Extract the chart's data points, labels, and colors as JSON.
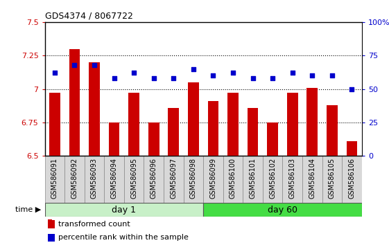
{
  "title": "GDS4374 / 8067722",
  "categories": [
    "GSM586091",
    "GSM586092",
    "GSM586093",
    "GSM586094",
    "GSM586095",
    "GSM586096",
    "GSM586097",
    "GSM586098",
    "GSM586099",
    "GSM586100",
    "GSM586101",
    "GSM586102",
    "GSM586103",
    "GSM586104",
    "GSM586105",
    "GSM586106"
  ],
  "bar_values": [
    6.97,
    7.3,
    7.2,
    6.75,
    6.97,
    6.75,
    6.86,
    7.05,
    6.91,
    6.97,
    6.86,
    6.75,
    6.97,
    7.01,
    6.88,
    6.61
  ],
  "dot_values": [
    62,
    68,
    68,
    58,
    62,
    58,
    58,
    65,
    60,
    62,
    58,
    58,
    62,
    60,
    60,
    50
  ],
  "bar_color": "#cc0000",
  "dot_color": "#0000cc",
  "ylim_left": [
    6.5,
    7.5
  ],
  "ylim_right": [
    0,
    100
  ],
  "yticks_left": [
    6.5,
    6.75,
    7.0,
    7.25,
    7.5
  ],
  "yticks_right": [
    0,
    25,
    50,
    75,
    100
  ],
  "ytick_labels_left": [
    "6.5",
    "6.75",
    "7",
    "7.25",
    "7.5"
  ],
  "ytick_labels_right": [
    "0",
    "25",
    "50",
    "75",
    "100%"
  ],
  "hlines": [
    6.75,
    7.0,
    7.25
  ],
  "group_labels": [
    "day 1",
    "day 60"
  ],
  "group1_color": "#c8f0c8",
  "group2_color": "#44dd44",
  "time_label": "time",
  "legend_bar_label": "transformed count",
  "legend_dot_label": "percentile rank within the sample",
  "bar_baseline": 6.5,
  "xlim": [
    -0.5,
    15.5
  ]
}
